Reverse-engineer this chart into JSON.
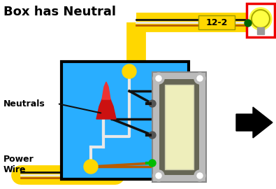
{
  "title": "Box has Neutral",
  "bg_color": "#ffffff",
  "yellow_color": "#FFD700",
  "blue_box_color": "#29AEFF",
  "blue_box_border": "#000000",
  "black_wire": "#111111",
  "white_wire": "#E8E8E8",
  "copper_wire": "#B85C00",
  "red_cap_dark": "#CC1111",
  "red_cap_light": "#EE3333",
  "green_dot": "#00BB00",
  "label_12_2_bg": "#FFD700",
  "arrow_color": "#000000",
  "switch_gray": "#BBBBBB",
  "switch_dark": "#666655",
  "switch_face": "#EEEEBB",
  "power_wire_label": "Power\nWire",
  "neutrals_label": "Neutrals",
  "label_text": "12-2",
  "lamp_red_border": "#EE0000",
  "lamp_yellow": "#FFFF44",
  "lamp_outline": "#CCCC00"
}
